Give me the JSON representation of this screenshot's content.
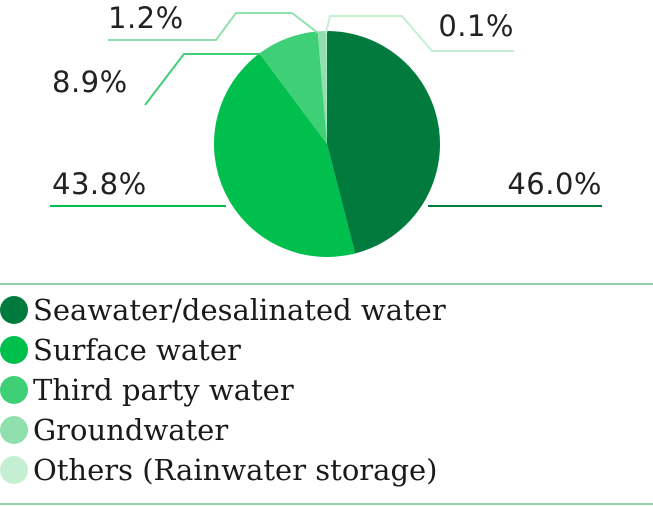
{
  "chart_data": {
    "type": "pie",
    "categories": [
      "Seawater/desalinated water",
      "Surface water",
      "Third party water",
      "Groundwater",
      "Others (Rainwater storage)"
    ],
    "values": [
      46.0,
      43.8,
      8.9,
      1.2,
      0.1
    ],
    "labels": [
      "46.0%",
      "43.8%",
      "8.9%",
      "1.2%",
      "0.1%"
    ],
    "colors": [
      "#007a3d",
      "#00bf4c",
      "#3fcf77",
      "#8fe0ad",
      "#c5efd3"
    ],
    "start": "12 o'clock",
    "direction": "clockwise",
    "legend": "bottom"
  }
}
